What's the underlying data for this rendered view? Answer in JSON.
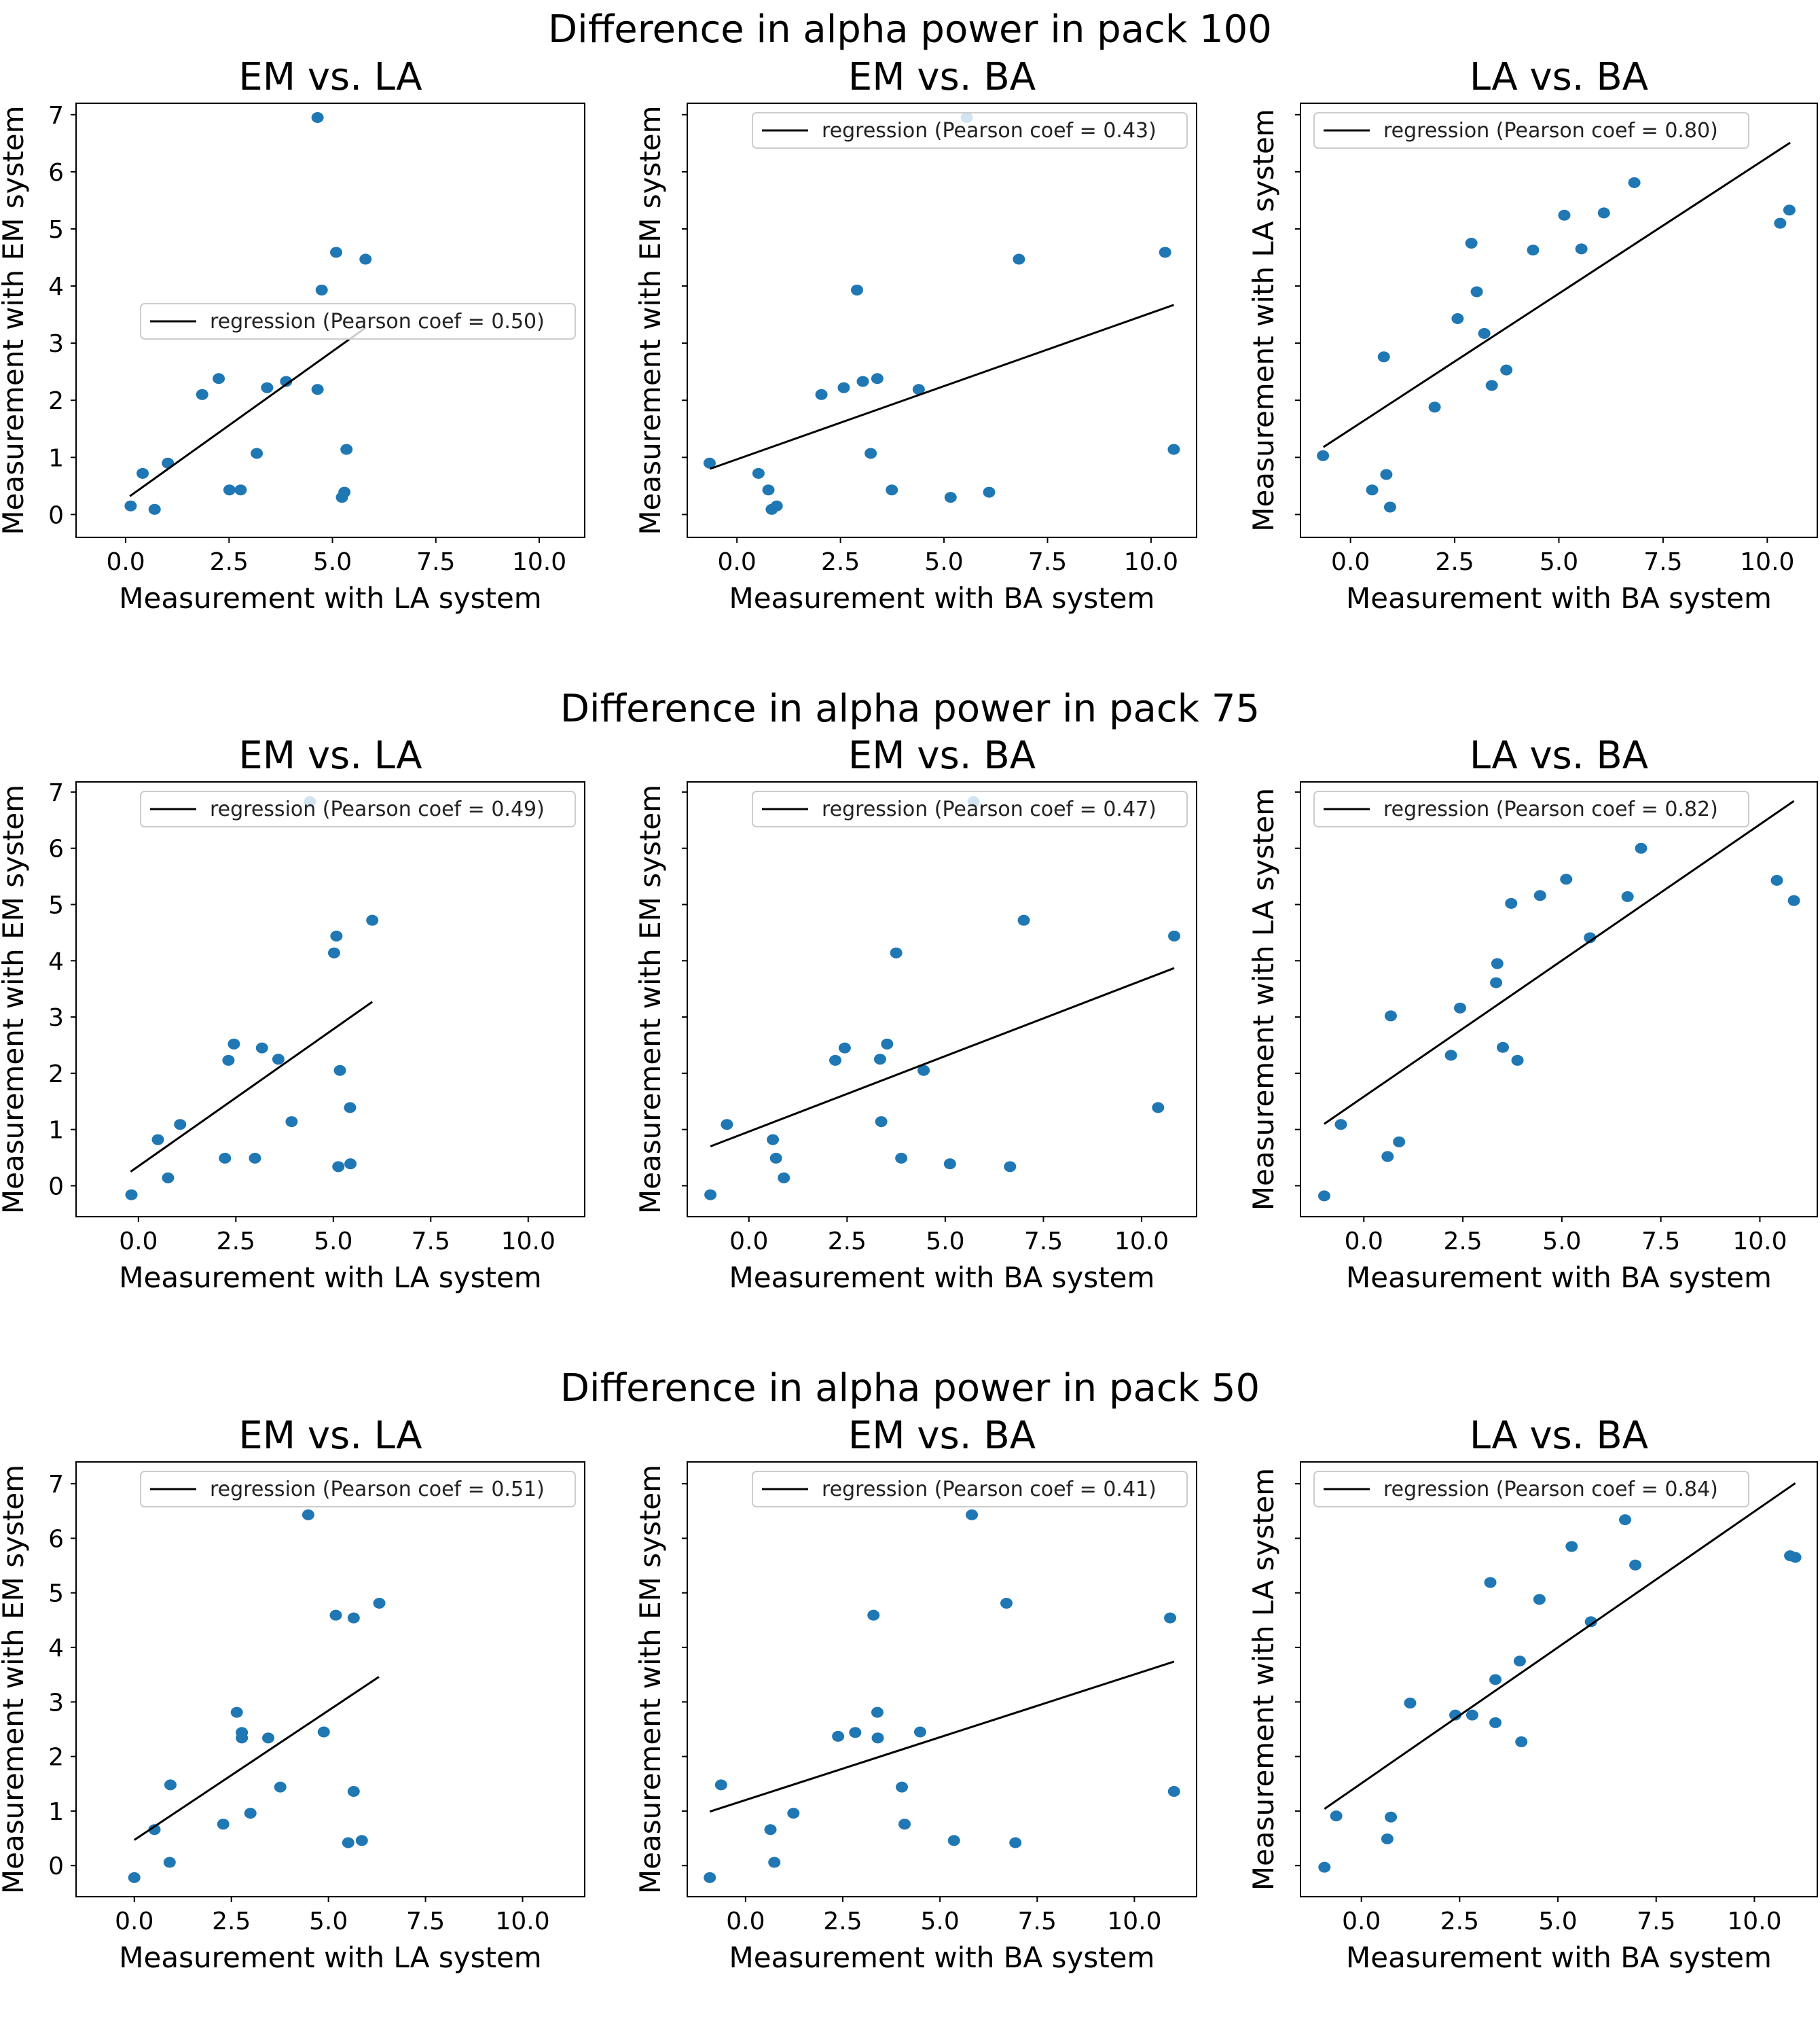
{
  "chart_data": [
    {
      "type": "scatter",
      "figure_title": "Difference in alpha power in pack 100",
      "title": "EM vs. LA",
      "xlabel": "Measurement with LA system",
      "ylabel": "Measurement with EM system",
      "xlim": [
        -1.2,
        11.1
      ],
      "ylim": [
        -0.4,
        7.2
      ],
      "xticks": [
        "0.0",
        "2.5",
        "5.0",
        "7.5",
        "10.0"
      ],
      "xtick_values": [
        0,
        2.5,
        5,
        7.5,
        10
      ],
      "yticks": [
        "0",
        "1",
        "2",
        "3",
        "4",
        "5",
        "6",
        "7"
      ],
      "ytick_values": [
        0,
        1,
        2,
        3,
        4,
        5,
        6,
        7
      ],
      "show_ytick_labels": true,
      "legend": {
        "label": "regression (Pearson coef = 0.50)",
        "placement": "center-right"
      },
      "regression": {
        "x": [
          0.1,
          5.8
        ],
        "y": [
          0.32,
          3.27
        ]
      },
      "points": {
        "x": [
          0.12,
          0.41,
          0.7,
          1.02,
          1.85,
          2.25,
          2.51,
          2.78,
          3.17,
          3.42,
          3.88,
          4.64,
          4.64,
          4.74,
          5.09,
          5.23,
          5.29,
          5.34,
          5.8
        ],
        "y": [
          0.15,
          0.72,
          0.09,
          0.9,
          2.1,
          2.38,
          0.43,
          0.43,
          1.07,
          2.22,
          2.33,
          2.19,
          6.95,
          3.93,
          4.59,
          0.3,
          0.39,
          1.14,
          4.47
        ]
      }
    },
    {
      "type": "scatter",
      "figure_title": "Difference in alpha power in pack 100",
      "title": "EM vs. BA",
      "xlabel": "Measurement with BA system",
      "ylabel": "Measurement with EM system",
      "xlim": [
        -1.2,
        11.1
      ],
      "ylim": [
        -0.4,
        7.2
      ],
      "xticks": [
        "0.0",
        "2.5",
        "5.0",
        "7.5",
        "10.0"
      ],
      "xtick_values": [
        0,
        2.5,
        5,
        7.5,
        10
      ],
      "yticks": [
        "",
        "",
        "",
        "",
        "",
        "",
        "",
        ""
      ],
      "ytick_values": [
        0,
        1,
        2,
        3,
        4,
        5,
        6,
        7
      ],
      "show_ytick_labels": false,
      "legend": {
        "label": "regression (Pearson coef = 0.43)",
        "placement": "upper-right"
      },
      "regression": {
        "x": [
          -0.65,
          10.55
        ],
        "y": [
          0.8,
          3.67
        ]
      },
      "points": {
        "x": [
          -0.66,
          0.52,
          0.76,
          0.84,
          0.96,
          2.04,
          2.58,
          3.04,
          3.39,
          2.9,
          3.23,
          3.74,
          4.39,
          5.16,
          5.55,
          6.09,
          6.81,
          10.34,
          10.55
        ],
        "y": [
          0.9,
          0.72,
          0.43,
          0.09,
          0.15,
          2.1,
          2.22,
          2.33,
          2.38,
          3.93,
          1.07,
          0.43,
          2.19,
          0.3,
          6.95,
          0.39,
          4.47,
          4.59,
          1.14
        ]
      }
    },
    {
      "type": "scatter",
      "figure_title": "Difference in alpha power in pack 100",
      "title": "LA vs. BA",
      "xlabel": "Measurement with BA system",
      "ylabel": "Measurement with LA system",
      "xlim": [
        -1.2,
        11.2
      ],
      "ylim": [
        -0.4,
        7.2
      ],
      "xticks": [
        "0.0",
        "2.5",
        "5.0",
        "7.5",
        "10.0"
      ],
      "xtick_values": [
        0,
        2.5,
        5,
        7.5,
        10
      ],
      "yticks": [
        "",
        "",
        "",
        "",
        "",
        "",
        "",
        ""
      ],
      "ytick_values": [
        0,
        1,
        2,
        3,
        4,
        5,
        6,
        7
      ],
      "show_ytick_labels": false,
      "legend": {
        "label": "regression (Pearson coef = 0.80)",
        "placement": "upper-left"
      },
      "regression": {
        "x": [
          -0.65,
          10.55
        ],
        "y": [
          1.18,
          6.51
        ]
      },
      "points": {
        "x": [
          -0.66,
          0.52,
          0.8,
          0.86,
          0.95,
          2.02,
          2.57,
          2.9,
          3.03,
          3.21,
          3.39,
          3.74,
          4.38,
          5.13,
          5.54,
          6.08,
          6.81,
          10.31,
          10.53
        ],
        "y": [
          1.03,
          0.43,
          2.76,
          0.7,
          0.13,
          1.88,
          3.43,
          4.75,
          3.9,
          3.17,
          2.26,
          2.53,
          4.63,
          5.24,
          4.65,
          5.28,
          5.81,
          5.1,
          5.33
        ]
      }
    },
    {
      "type": "scatter",
      "figure_title": "Difference in alpha power in pack 75",
      "title": "EM vs. LA",
      "xlabel": "Measurement with LA system",
      "ylabel": "Measurement with EM system",
      "xlim": [
        -1.6,
        11.45
      ],
      "ylim": [
        -0.55,
        7.18
      ],
      "xticks": [
        "0.0",
        "2.5",
        "5.0",
        "7.5",
        "10.0"
      ],
      "xtick_values": [
        0,
        2.5,
        5,
        7.5,
        10
      ],
      "yticks": [
        "0",
        "1",
        "2",
        "3",
        "4",
        "5",
        "6",
        "7"
      ],
      "ytick_values": [
        0,
        1,
        2,
        3,
        4,
        5,
        6,
        7
      ],
      "show_ytick_labels": true,
      "legend": {
        "label": "regression (Pearson coef = 0.49)",
        "placement": "upper-right"
      },
      "regression": {
        "x": [
          -0.2,
          6.0
        ],
        "y": [
          0.25,
          3.27
        ]
      },
      "points": {
        "x": [
          -0.18,
          0.5,
          0.76,
          1.07,
          2.22,
          2.31,
          2.45,
          2.99,
          3.17,
          3.59,
          3.93,
          4.4,
          5.02,
          5.08,
          5.13,
          5.17,
          5.43,
          5.44,
          6.0
        ],
        "y": [
          -0.16,
          0.82,
          0.14,
          1.09,
          0.49,
          2.23,
          2.52,
          0.49,
          2.45,
          2.25,
          1.14,
          6.83,
          4.14,
          4.44,
          0.34,
          2.05,
          1.39,
          0.39,
          4.72
        ]
      }
    },
    {
      "type": "scatter",
      "figure_title": "Difference in alpha power in pack 75",
      "title": "EM vs. BA",
      "xlabel": "Measurement with BA system",
      "ylabel": "Measurement with EM system",
      "xlim": [
        -1.57,
        11.4
      ],
      "ylim": [
        -0.55,
        7.18
      ],
      "xticks": [
        "0.0",
        "2.5",
        "5.0",
        "7.5",
        "10.0"
      ],
      "xtick_values": [
        0,
        2.5,
        5,
        7.5,
        10
      ],
      "yticks": [
        "",
        "",
        "",
        "",
        "",
        "",
        "",
        ""
      ],
      "ytick_values": [
        0,
        1,
        2,
        3,
        4,
        5,
        6,
        7
      ],
      "show_ytick_labels": false,
      "legend": {
        "label": "regression (Pearson coef = 0.47)",
        "placement": "upper-right"
      },
      "regression": {
        "x": [
          -0.98,
          10.83
        ],
        "y": [
          0.7,
          3.87
        ]
      },
      "points": {
        "x": [
          -0.98,
          -0.56,
          0.61,
          0.69,
          0.89,
          2.2,
          2.44,
          3.34,
          3.52,
          3.37,
          3.75,
          3.88,
          4.45,
          5.12,
          5.72,
          6.65,
          7.0,
          10.42,
          10.83
        ],
        "y": [
          -0.16,
          1.09,
          0.82,
          0.49,
          0.14,
          2.23,
          2.45,
          2.25,
          2.52,
          1.14,
          4.14,
          0.49,
          2.05,
          0.39,
          6.83,
          0.34,
          4.72,
          1.39,
          4.44
        ]
      }
    },
    {
      "type": "scatter",
      "figure_title": "Difference in alpha power in pack 75",
      "title": "LA vs. BA",
      "xlabel": "Measurement with BA system",
      "ylabel": "Measurement with LA system",
      "xlim": [
        -1.6,
        11.45
      ],
      "ylim": [
        -0.55,
        7.18
      ],
      "xticks": [
        "0.0",
        "2.5",
        "5.0",
        "7.5",
        "10.0"
      ],
      "xtick_values": [
        0,
        2.5,
        5,
        7.5,
        10
      ],
      "yticks": [
        "",
        "",
        "",
        "",
        "",
        "",
        "",
        ""
      ],
      "ytick_values": [
        0,
        1,
        2,
        3,
        4,
        5,
        6,
        7
      ],
      "show_ytick_labels": false,
      "legend": {
        "label": "regression (Pearson coef = 0.82)",
        "placement": "upper-left"
      },
      "regression": {
        "x": [
          -1.0,
          10.86
        ],
        "y": [
          1.1,
          6.84
        ]
      },
      "points": {
        "x": [
          -1.0,
          -0.58,
          0.6,
          0.68,
          0.89,
          2.2,
          2.43,
          3.34,
          3.37,
          3.51,
          3.72,
          3.88,
          4.45,
          5.11,
          5.71,
          6.66,
          7.0,
          10.43,
          10.86
        ],
        "y": [
          -0.18,
          1.09,
          0.52,
          3.02,
          0.78,
          2.32,
          3.16,
          3.61,
          3.95,
          2.46,
          5.02,
          2.23,
          5.16,
          5.45,
          4.41,
          5.14,
          6.0,
          5.43,
          5.07
        ]
      }
    },
    {
      "type": "scatter",
      "figure_title": "Difference in alpha power in pack 50",
      "title": "EM vs. LA",
      "xlabel": "Measurement with LA system",
      "ylabel": "Measurement with EM system",
      "xlim": [
        -1.5,
        11.6
      ],
      "ylim": [
        -0.57,
        7.4
      ],
      "xticks": [
        "0.0",
        "2.5",
        "5.0",
        "7.5",
        "10.0"
      ],
      "xtick_values": [
        0,
        2.5,
        5,
        7.5,
        10
      ],
      "yticks": [
        "0",
        "1",
        "2",
        "3",
        "4",
        "5",
        "6",
        "7"
      ],
      "ytick_values": [
        0,
        1,
        2,
        3,
        4,
        5,
        6,
        7
      ],
      "show_ytick_labels": true,
      "legend": {
        "label": "regression (Pearson coef = 0.51)",
        "placement": "upper-right"
      },
      "regression": {
        "x": [
          0.0,
          6.3
        ],
        "y": [
          0.47,
          3.46
        ]
      },
      "points": {
        "x": [
          0.0,
          0.52,
          0.91,
          0.93,
          2.29,
          2.64,
          2.77,
          2.77,
          2.99,
          3.45,
          3.76,
          4.48,
          4.88,
          5.19,
          5.51,
          5.65,
          5.65,
          5.86,
          6.31
        ],
        "y": [
          -0.22,
          0.66,
          0.06,
          1.48,
          0.76,
          2.81,
          2.44,
          2.34,
          0.96,
          2.34,
          1.44,
          6.43,
          2.45,
          4.59,
          0.42,
          4.54,
          1.36,
          0.46,
          4.81
        ]
      }
    },
    {
      "type": "scatter",
      "figure_title": "Difference in alpha power in pack 50",
      "title": "EM vs. BA",
      "xlabel": "Measurement with BA system",
      "ylabel": "Measurement with EM system",
      "xlim": [
        -1.5,
        11.6
      ],
      "ylim": [
        -0.57,
        7.4
      ],
      "xticks": [
        "0.0",
        "2.5",
        "5.0",
        "7.5",
        "10.0"
      ],
      "xtick_values": [
        0,
        2.5,
        5,
        7.5,
        10
      ],
      "yticks": [
        "",
        "",
        "",
        "",
        "",
        "",
        "",
        ""
      ],
      "ytick_values": [
        0,
        1,
        2,
        3,
        4,
        5,
        6,
        7
      ],
      "show_ytick_labels": false,
      "legend": {
        "label": "regression (Pearson coef = 0.41)",
        "placement": "upper-right"
      },
      "regression": {
        "x": [
          -0.92,
          11.02
        ],
        "y": [
          0.99,
          3.74
        ]
      },
      "points": {
        "x": [
          -0.92,
          -0.63,
          0.64,
          0.74,
          1.23,
          2.38,
          2.82,
          3.29,
          3.39,
          3.4,
          4.02,
          4.09,
          4.49,
          5.36,
          5.82,
          6.71,
          6.94,
          10.92,
          11.02
        ],
        "y": [
          -0.22,
          1.48,
          0.66,
          0.06,
          0.96,
          2.37,
          2.44,
          4.59,
          2.81,
          2.34,
          1.44,
          0.76,
          2.45,
          0.46,
          6.43,
          4.81,
          0.42,
          4.54,
          1.36
        ]
      }
    },
    {
      "type": "scatter",
      "figure_title": "Difference in alpha power in pack 50",
      "title": "LA vs. BA",
      "xlabel": "Measurement with BA system",
      "ylabel": "Measurement with LA system",
      "xlim": [
        -1.55,
        11.6
      ],
      "ylim": [
        -0.57,
        7.4
      ],
      "xticks": [
        "0.0",
        "2.5",
        "5.0",
        "7.5",
        "10.0"
      ],
      "xtick_values": [
        0,
        2.5,
        5,
        7.5,
        10
      ],
      "yticks": [
        "",
        "",
        "",
        "",
        "",
        "",
        "",
        ""
      ],
      "ytick_values": [
        0,
        1,
        2,
        3,
        4,
        5,
        6,
        7
      ],
      "show_ytick_labels": false,
      "legend": {
        "label": "regression (Pearson coef = 0.84)",
        "placement": "upper-left"
      },
      "regression": {
        "x": [
          -0.94,
          11.04
        ],
        "y": [
          1.04,
          7.01
        ]
      },
      "points": {
        "x": [
          -0.94,
          -0.64,
          0.66,
          0.75,
          1.24,
          2.39,
          2.82,
          3.28,
          3.41,
          3.41,
          4.03,
          4.07,
          4.53,
          5.35,
          5.84,
          6.71,
          6.97,
          10.91,
          11.04
        ],
        "y": [
          -0.03,
          0.91,
          0.49,
          0.89,
          2.98,
          2.76,
          2.76,
          5.19,
          3.41,
          2.62,
          3.75,
          2.27,
          4.88,
          5.85,
          4.47,
          6.34,
          5.51,
          5.68,
          5.65
        ]
      }
    }
  ],
  "figure_titles": [
    "Difference in alpha power in pack 100",
    "Difference in alpha power in pack 75",
    "Difference in alpha power in pack 50"
  ],
  "colors": {
    "point": "#1f77b4",
    "regression": "#000000",
    "legend_edge": "#cccccc",
    "frame": "#000000"
  }
}
